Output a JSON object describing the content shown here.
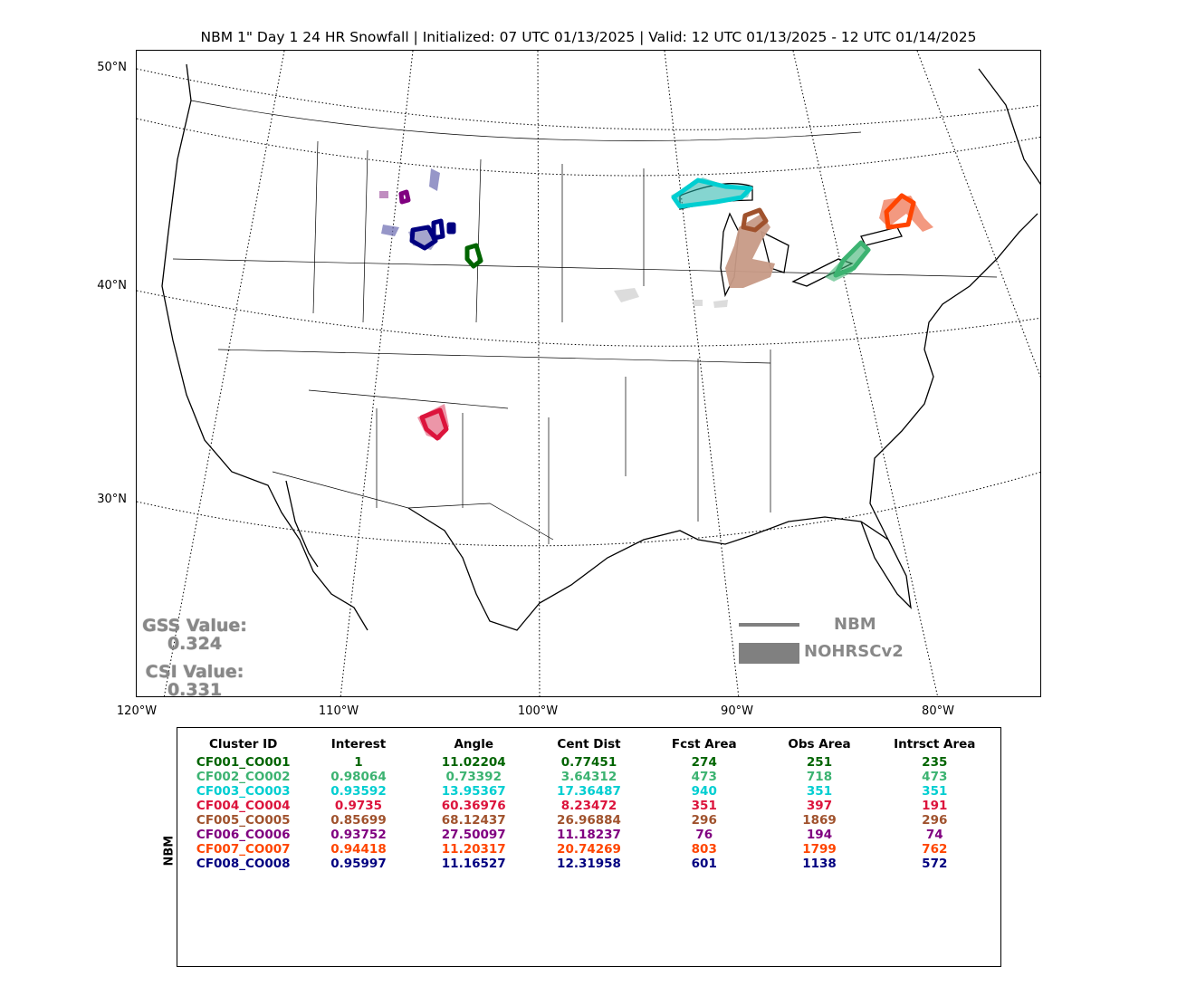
{
  "title": "NBM 1\" Day 1 24 HR Snowfall | Initialized: 07 UTC 01/13/2025 | Valid: 12 UTC 01/13/2025 - 12 UTC 01/14/2025",
  "lat_labels": [
    "50°N",
    "40°N",
    "30°N"
  ],
  "lon_labels": [
    "120°W",
    "110°W",
    "100°W",
    "90°W",
    "80°W"
  ],
  "scores": {
    "gss_label": "GSS Value:",
    "gss_value": "0.324",
    "csi_label": "CSI Value:",
    "csi_value": "0.331"
  },
  "legend": {
    "line_label": "NBM",
    "fill_label": "NOHRSCv2",
    "color": "#808080"
  },
  "side_label": "NBM",
  "table": {
    "headers": [
      "Cluster ID",
      "Interest",
      "Angle",
      "Cent Dist",
      "Fcst Area",
      "Obs Area",
      "Intrsct Area"
    ],
    "rows": [
      {
        "color": "#006400",
        "cells": [
          "CF001_CO001",
          "1",
          "11.02204",
          "0.77451",
          "274",
          "251",
          "235"
        ]
      },
      {
        "color": "#3cb371",
        "cells": [
          "CF002_CO002",
          "0.98064",
          "0.73392",
          "3.64312",
          "473",
          "718",
          "473"
        ]
      },
      {
        "color": "#00ced1",
        "cells": [
          "CF003_CO003",
          "0.93592",
          "13.95367",
          "17.36487",
          "940",
          "351",
          "351"
        ]
      },
      {
        "color": "#dc143c",
        "cells": [
          "CF004_CO004",
          "0.9735",
          "60.36976",
          "8.23472",
          "351",
          "397",
          "191"
        ]
      },
      {
        "color": "#a0522d",
        "cells": [
          "CF005_CO005",
          "0.85699",
          "68.12437",
          "26.96884",
          "296",
          "1869",
          "296"
        ]
      },
      {
        "color": "#800080",
        "cells": [
          "CF006_CO006",
          "0.93752",
          "27.50097",
          "11.18237",
          "76",
          "194",
          "74"
        ]
      },
      {
        "color": "#ff4500",
        "cells": [
          "CF007_CO007",
          "0.94418",
          "11.20317",
          "20.74269",
          "803",
          "1799",
          "762"
        ]
      },
      {
        "color": "#000080",
        "cells": [
          "CF008_CO008",
          "0.95997",
          "11.16527",
          "12.31958",
          "601",
          "1138",
          "572"
        ]
      }
    ]
  }
}
